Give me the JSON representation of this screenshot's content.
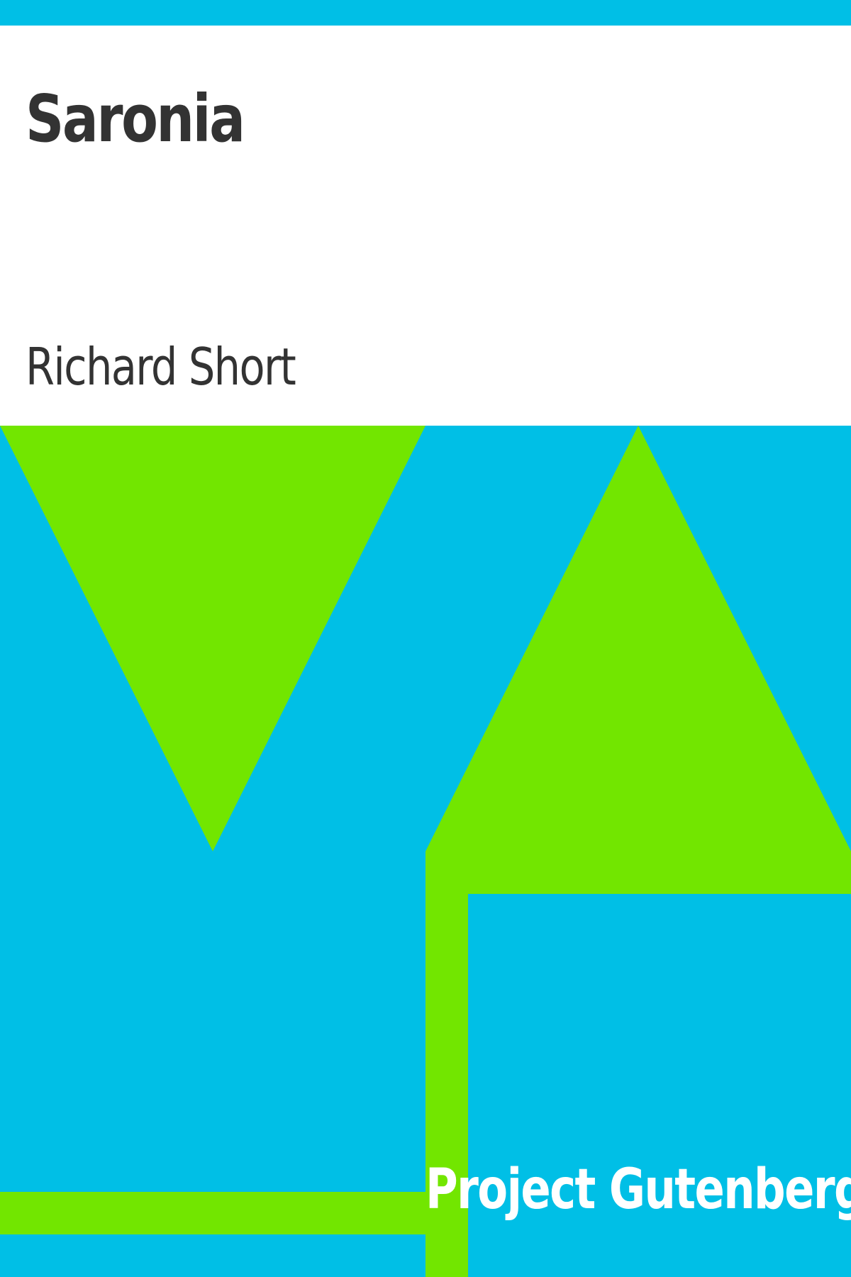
{
  "book": {
    "title": "Saronia",
    "author": "Richard Short",
    "publisher": "Project Gutenberg"
  },
  "colors": {
    "background_blue": "#00bfe6",
    "accent_green": "#72e600",
    "title_text": "#333333",
    "publisher_text": "#ffffff",
    "panel": "#ffffff"
  }
}
